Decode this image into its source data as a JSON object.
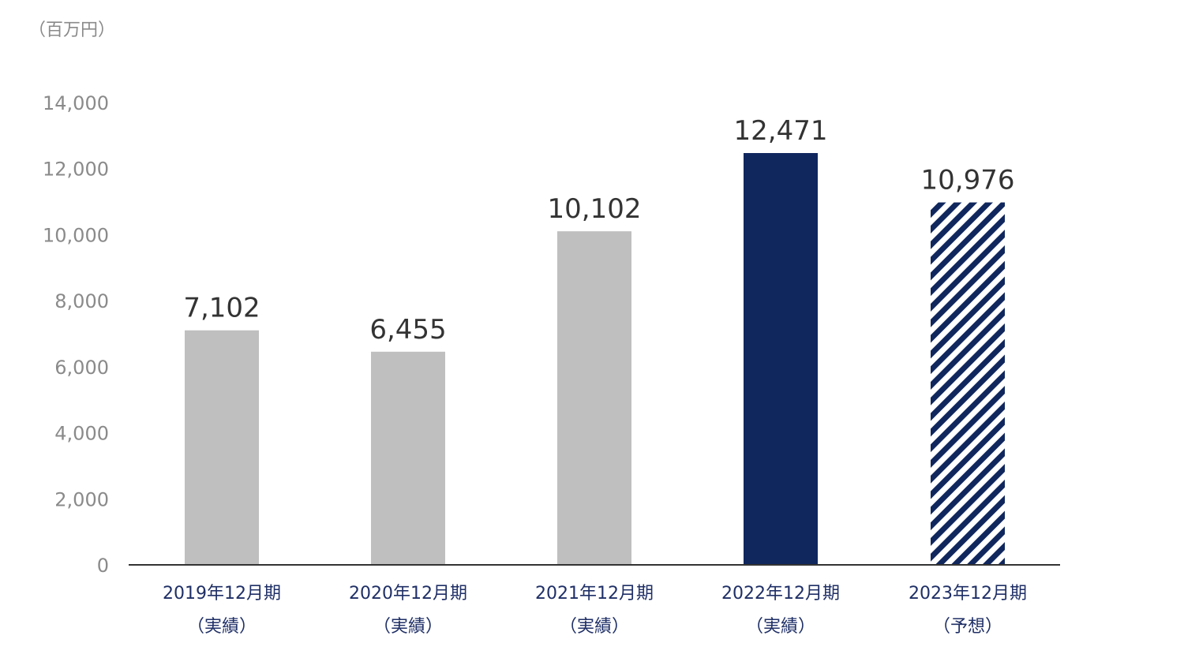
{
  "chart_data": {
    "type": "bar",
    "unit_label": "（百万円）",
    "categories": [
      {
        "period": "2019年12月期",
        "note": "（実績）"
      },
      {
        "period": "2020年12月期",
        "note": "（実績）"
      },
      {
        "period": "2021年12月期",
        "note": "（実績）"
      },
      {
        "period": "2022年12月期",
        "note": "（実績）"
      },
      {
        "period": "2023年12月期",
        "note": "（予想）"
      }
    ],
    "values": [
      7102,
      6455,
      10102,
      12471,
      10976
    ],
    "value_labels": [
      "7,102",
      "6,455",
      "10,102",
      "12,471",
      "10,976"
    ],
    "bar_styles": [
      "solid-gray",
      "solid-gray",
      "solid-gray",
      "solid-navy",
      "hatched-navy"
    ],
    "ylim": [
      0,
      14000
    ],
    "yticks": [
      0,
      2000,
      4000,
      6000,
      8000,
      10000,
      12000,
      14000
    ],
    "ytick_labels": [
      "0",
      "2,000",
      "4,000",
      "6,000",
      "8,000",
      "10,000",
      "12,000",
      "14,000"
    ],
    "grid": false,
    "colors": {
      "gray": "#bfbfbf",
      "navy": "#10275e",
      "axis": "#333333",
      "tick_text": "#8a8a8a",
      "value_text": "#333333",
      "category_text": "#1f2f66"
    }
  }
}
